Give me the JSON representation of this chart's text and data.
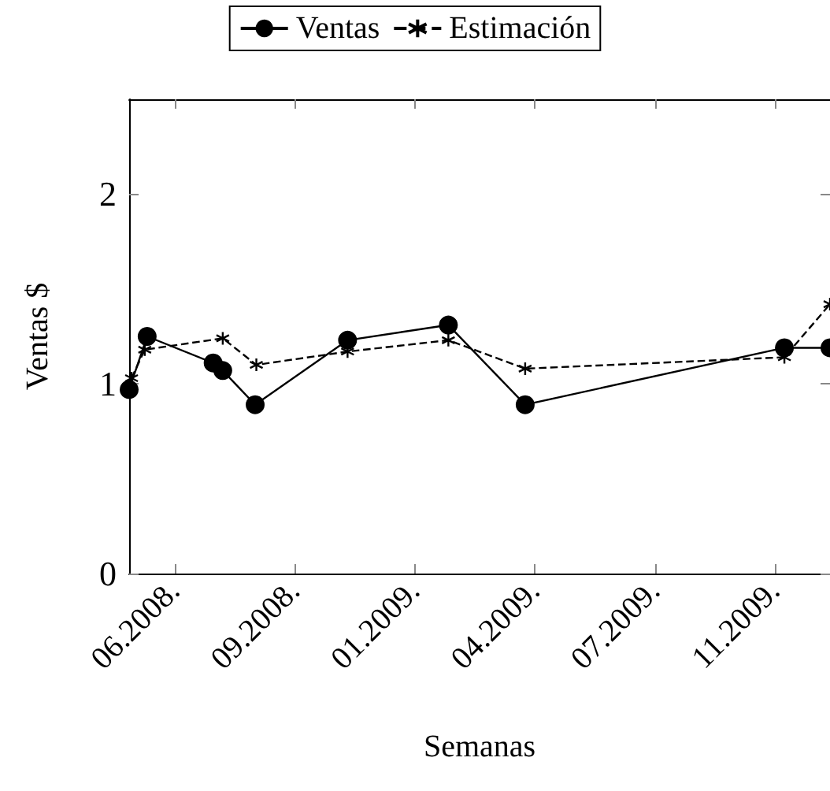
{
  "chart_data": {
    "type": "line",
    "xlabel": "Semanas",
    "ylabel": "Ventas $",
    "xlim": [
      "2008-05-13",
      "2009-12-18"
    ],
    "xticks": [
      {
        "value": "2008-06-20",
        "label": "06.2008."
      },
      {
        "value": "2008-09-28",
        "label": "09.2008."
      },
      {
        "value": "2009-01-06",
        "label": "01.2009."
      },
      {
        "value": "2009-04-16",
        "label": "04.2009."
      },
      {
        "value": "2009-07-25",
        "label": "07.2009."
      },
      {
        "value": "2009-11-02",
        "label": "11.2009."
      }
    ],
    "ylim": [
      0,
      2.5
    ],
    "yticks": [
      0,
      1,
      2
    ],
    "grid": false,
    "legend": "top",
    "series": [
      {
        "name": "Ventas",
        "color": "#000000",
        "marker": "circle",
        "line_style": "solid",
        "x": [
          "2008-05-13",
          "2008-05-28",
          "2008-07-22",
          "2008-07-30",
          "2008-08-26",
          "2008-11-11",
          "2009-02-03",
          "2009-04-08",
          "2009-11-10",
          "2009-12-18"
        ],
        "values": [
          0.97,
          1.25,
          1.11,
          1.07,
          0.89,
          1.23,
          1.31,
          0.89,
          1.19,
          1.19
        ]
      },
      {
        "name": "Estimación",
        "color": "#000000",
        "marker": "cross",
        "line_style": "dashed",
        "x": [
          "2008-05-15",
          "2008-05-26",
          "2008-07-30",
          "2008-08-27",
          "2008-11-11",
          "2009-02-03",
          "2009-04-08",
          "2009-11-10",
          "2009-12-18"
        ],
        "values": [
          1.03,
          1.18,
          1.24,
          1.1,
          1.17,
          1.23,
          1.08,
          1.14,
          1.42
        ]
      }
    ]
  }
}
